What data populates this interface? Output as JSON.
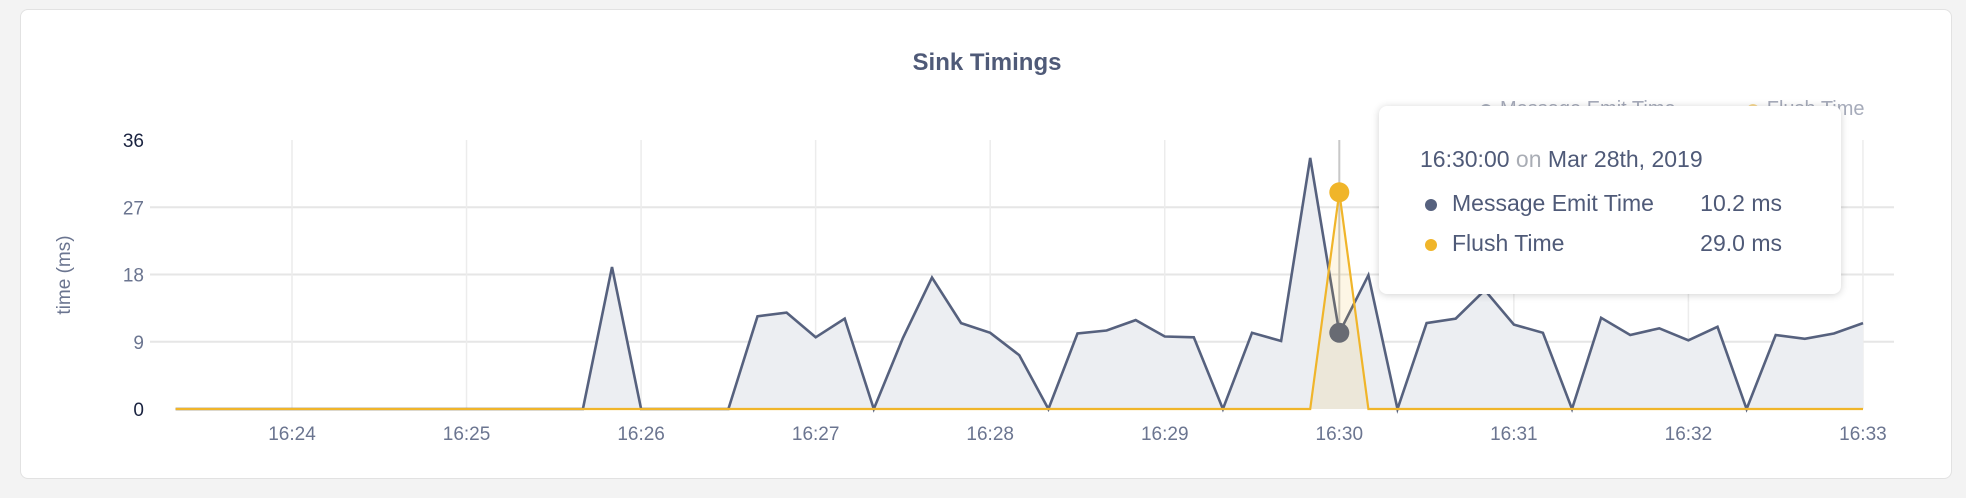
{
  "chart_data": {
    "type": "area",
    "title": "Sink Timings",
    "xlabel": "",
    "ylabel": "time (ms)",
    "ylim": [
      0,
      36
    ],
    "yticks": [
      "0",
      "9",
      "18",
      "27",
      "36"
    ],
    "xticks": [
      "16:24",
      "16:25",
      "16:26",
      "16:27",
      "16:28",
      "16:29",
      "16:30",
      "16:31",
      "16:32",
      "16:33"
    ],
    "grid": true,
    "legend": "top-right",
    "x": [
      "16:23:20",
      "16:23:30",
      "16:23:40",
      "16:23:50",
      "16:24:00",
      "16:24:10",
      "16:24:20",
      "16:24:30",
      "16:24:40",
      "16:24:50",
      "16:25:00",
      "16:25:10",
      "16:25:20",
      "16:25:30",
      "16:25:40",
      "16:25:50",
      "16:26:00",
      "16:26:10",
      "16:26:20",
      "16:26:30",
      "16:26:40",
      "16:26:50",
      "16:27:00",
      "16:27:10",
      "16:27:20",
      "16:27:30",
      "16:27:40",
      "16:27:50",
      "16:28:00",
      "16:28:10",
      "16:28:20",
      "16:28:30",
      "16:28:40",
      "16:28:50",
      "16:29:00",
      "16:29:10",
      "16:29:20",
      "16:29:30",
      "16:29:40",
      "16:29:50",
      "16:30:00",
      "16:30:10",
      "16:30:20",
      "16:30:30",
      "16:30:40",
      "16:30:50",
      "16:31:00",
      "16:31:10",
      "16:31:20",
      "16:31:30",
      "16:31:40",
      "16:31:50",
      "16:32:00",
      "16:32:10",
      "16:32:20",
      "16:32:30",
      "16:32:40",
      "16:32:50",
      "16:33:00"
    ],
    "series": [
      {
        "name": "Message Emit Time",
        "color": "#56617e",
        "values": [
          0,
          0,
          0,
          0,
          0,
          0,
          0,
          0,
          0,
          0,
          0,
          0,
          0,
          0,
          0,
          19.0,
          0,
          0,
          0,
          0,
          12.4,
          12.9,
          9.6,
          12.1,
          0,
          9.5,
          17.6,
          11.5,
          10.2,
          7.2,
          0,
          10.1,
          10.5,
          11.9,
          9.7,
          9.6,
          0,
          10.2,
          9.1,
          33.6,
          10.2,
          17.9,
          0,
          11.5,
          12.1,
          15.9,
          11.3,
          10.2,
          0,
          12.2,
          9.9,
          10.8,
          9.2,
          11.0,
          0,
          9.9,
          9.4,
          10.1,
          11.5
        ]
      },
      {
        "name": "Flush Time",
        "color": "#f0b52a",
        "values": [
          0,
          0,
          0,
          0,
          0,
          0,
          0,
          0,
          0,
          0,
          0,
          0,
          0,
          0,
          0,
          0,
          0,
          0,
          0,
          0,
          0,
          0,
          0,
          0,
          0,
          0,
          0,
          0,
          0,
          0,
          0,
          0,
          0,
          0,
          0,
          0,
          0,
          0,
          0,
          0,
          29.0,
          0,
          0,
          0,
          0,
          0,
          0,
          0,
          0,
          0,
          0,
          0,
          0,
          0,
          0,
          0,
          0,
          0,
          0
        ]
      }
    ],
    "hover": "16:30:00"
  },
  "tooltip": {
    "time": "16:30:00",
    "on": "on",
    "date": "Mar 28th, 2019",
    "rows": [
      {
        "label": "Message Emit Time",
        "value": "10.2 ms",
        "color": "#56617e"
      },
      {
        "label": "Flush Time",
        "value": "29.0 ms",
        "color": "#f0b52a"
      }
    ]
  }
}
